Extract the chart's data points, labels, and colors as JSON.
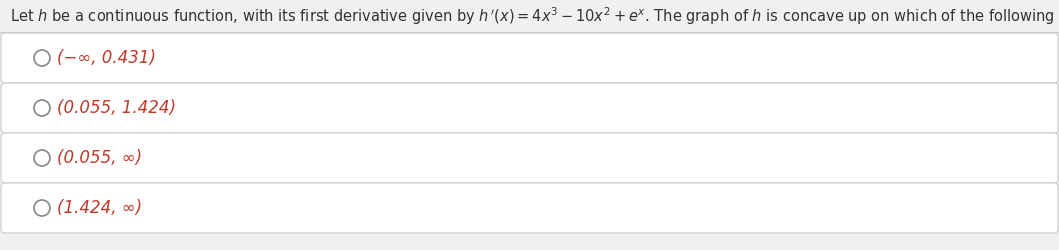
{
  "title_text": "Let $h$ be a continuous function, with its first derivative given by $h\\,'(x) = 4x^3 - 10x^2 + e^x$. The graph of $h$ is concave up on which of the following intervals?",
  "options": [
    "(−∞, 0.431)",
    "(0.055, 1.424)",
    "(0.055, ∞)",
    "(1.424, ∞)"
  ],
  "option_color": "#c0392b",
  "title_color": "#333333",
  "background_color": "#f0f0f0",
  "box_color": "#ffffff",
  "box_border_color": "#cccccc",
  "circle_color": "#888888",
  "title_fontsize": 10.5,
  "option_fontsize": 12,
  "fig_width": 10.59,
  "fig_height": 2.5,
  "dpi": 100
}
